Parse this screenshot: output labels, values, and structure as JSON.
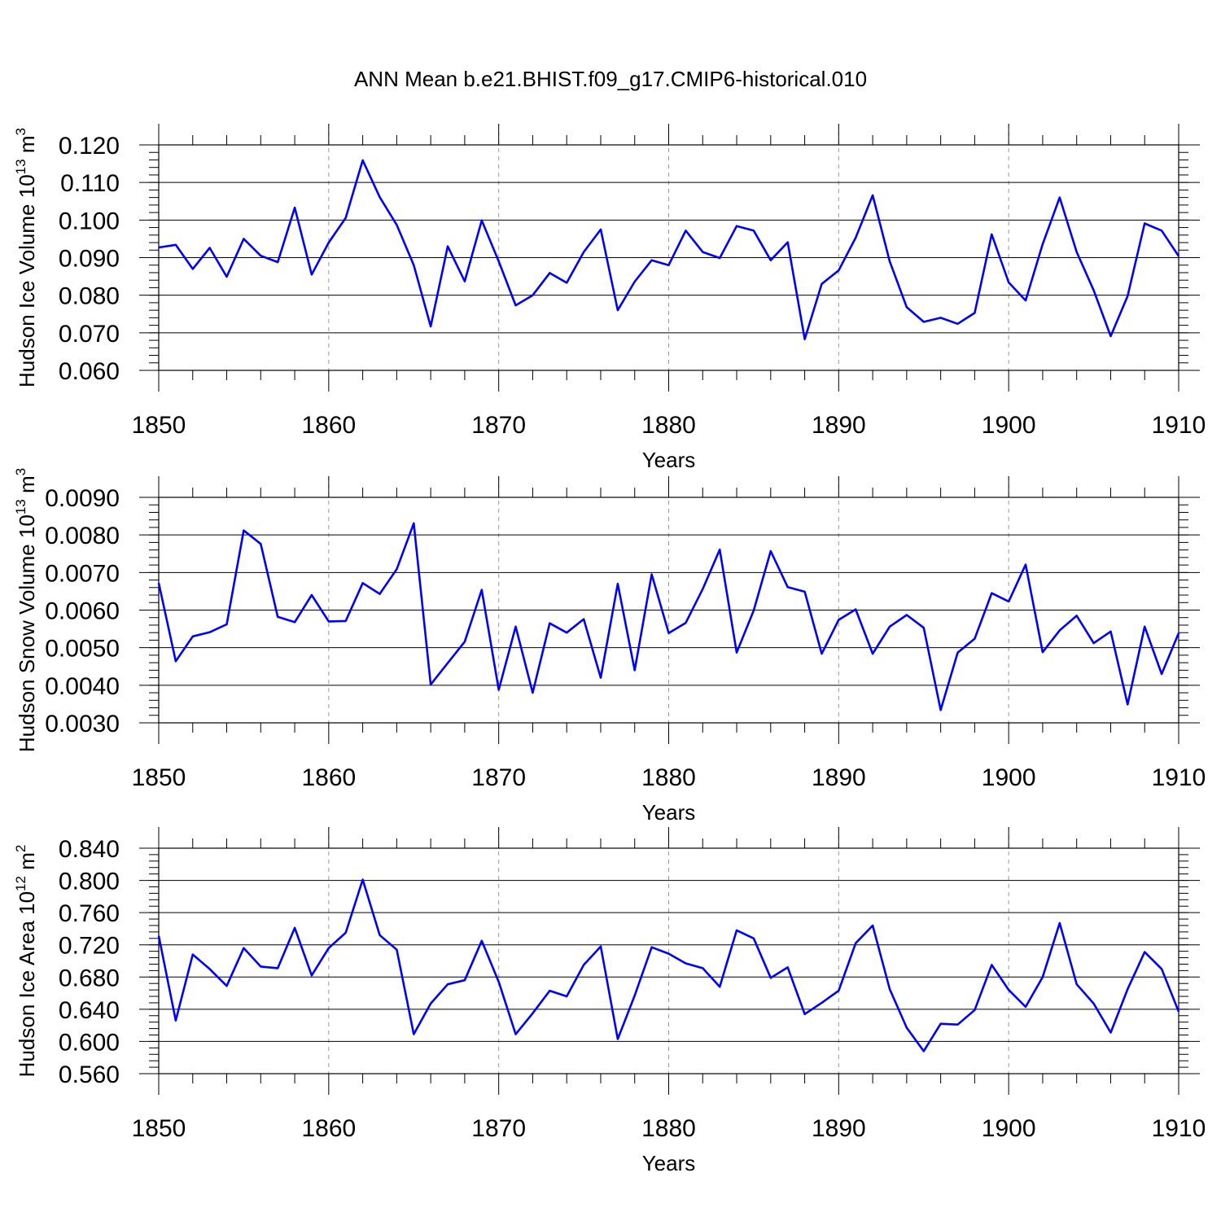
{
  "figure": {
    "title": "ANN Mean b.e21.BHIST.f09_g17.CMIP6-historical.010"
  },
  "chart_data": [
    {
      "type": "line",
      "xlabel": "Years",
      "ylabel": {
        "prefix": "Hudson Ice Volume 10",
        "exp": "13",
        "mid": " m",
        "unit_exp": "3"
      },
      "xlim": [
        1850,
        1910
      ],
      "ylim": [
        0.06,
        0.12
      ],
      "grid": "vertical-dashed",
      "line_color": "#0000ff",
      "x_ticks": [
        "1850",
        "1860",
        "1870",
        "1880",
        "1890",
        "1900",
        "1910"
      ],
      "y_ticks": [
        "0.060",
        "0.070",
        "0.080",
        "0.090",
        "0.100",
        "0.110",
        "0.120"
      ],
      "x": [
        1850,
        1851,
        1852,
        1853,
        1854,
        1855,
        1856,
        1857,
        1858,
        1859,
        1860,
        1861,
        1862,
        1863,
        1864,
        1865,
        1866,
        1867,
        1868,
        1869,
        1870,
        1871,
        1872,
        1873,
        1874,
        1875,
        1876,
        1877,
        1878,
        1879,
        1880,
        1881,
        1882,
        1883,
        1884,
        1885,
        1886,
        1887,
        1888,
        1889,
        1890,
        1891,
        1892,
        1893,
        1894,
        1895,
        1896,
        1897,
        1898,
        1899,
        1900,
        1901,
        1902,
        1903,
        1904,
        1905,
        1906,
        1907,
        1908,
        1909,
        1910
      ],
      "values": [
        0.0927,
        0.0934,
        0.087,
        0.0926,
        0.0849,
        0.095,
        0.0905,
        0.0888,
        0.1033,
        0.0855,
        0.094,
        0.1006,
        0.1159,
        0.1061,
        0.0987,
        0.088,
        0.0717,
        0.093,
        0.0837,
        0.0999,
        0.089,
        0.0773,
        0.08,
        0.0859,
        0.0833,
        0.0915,
        0.0975,
        0.076,
        0.0836,
        0.0893,
        0.088,
        0.0972,
        0.0915,
        0.0899,
        0.0984,
        0.0972,
        0.0893,
        0.0941,
        0.0683,
        0.083,
        0.0866,
        0.0953,
        0.1066,
        0.089,
        0.0768,
        0.0729,
        0.074,
        0.0724,
        0.0753,
        0.0962,
        0.0834,
        0.0786,
        0.0936,
        0.106,
        0.0915,
        0.0813,
        0.0691,
        0.0798,
        0.0991,
        0.0972,
        0.0904
      ]
    },
    {
      "type": "line",
      "xlabel": "Years",
      "ylabel": {
        "prefix": "Hudson Snow Volume 10",
        "exp": "13",
        "mid": " m",
        "unit_exp": "3"
      },
      "xlim": [
        1850,
        1910
      ],
      "ylim": [
        0.003,
        0.009
      ],
      "grid": "vertical-dashed",
      "line_color": "#0000ff",
      "x_ticks": [
        "1850",
        "1860",
        "1870",
        "1880",
        "1890",
        "1900",
        "1910"
      ],
      "y_ticks": [
        "0.0030",
        "0.0040",
        "0.0050",
        "0.0060",
        "0.0070",
        "0.0080",
        "0.0090"
      ],
      "x": [
        1850,
        1851,
        1852,
        1853,
        1854,
        1855,
        1856,
        1857,
        1858,
        1859,
        1860,
        1861,
        1862,
        1863,
        1864,
        1865,
        1866,
        1867,
        1868,
        1869,
        1870,
        1871,
        1872,
        1873,
        1874,
        1875,
        1876,
        1877,
        1878,
        1879,
        1880,
        1881,
        1882,
        1883,
        1884,
        1885,
        1886,
        1887,
        1888,
        1889,
        1890,
        1891,
        1892,
        1893,
        1894,
        1895,
        1896,
        1897,
        1898,
        1899,
        1900,
        1901,
        1902,
        1903,
        1904,
        1905,
        1906,
        1907,
        1908,
        1909,
        1910
      ],
      "values": [
        0.00672,
        0.00464,
        0.0053,
        0.00541,
        0.00562,
        0.00812,
        0.00776,
        0.00582,
        0.00568,
        0.0064,
        0.0057,
        0.00571,
        0.00672,
        0.00643,
        0.00709,
        0.00831,
        0.00402,
        0.00459,
        0.00516,
        0.00654,
        0.00388,
        0.00556,
        0.0038,
        0.00565,
        0.0054,
        0.00576,
        0.0042,
        0.0067,
        0.0044,
        0.00695,
        0.00539,
        0.00566,
        0.00656,
        0.00761,
        0.00487,
        0.00599,
        0.00757,
        0.00661,
        0.00649,
        0.00484,
        0.00574,
        0.00602,
        0.00484,
        0.00556,
        0.00587,
        0.00553,
        0.00334,
        0.00487,
        0.00524,
        0.00645,
        0.00623,
        0.00721,
        0.00488,
        0.00546,
        0.00585,
        0.00512,
        0.00543,
        0.00349,
        0.00556,
        0.0043,
        0.00539
      ]
    },
    {
      "type": "line",
      "xlabel": "Years",
      "ylabel": {
        "prefix": "Hudson Ice Area 10",
        "exp": "12",
        "mid": " m",
        "unit_exp": "2"
      },
      "xlim": [
        1850,
        1910
      ],
      "ylim": [
        0.56,
        0.84
      ],
      "grid": "vertical-dashed",
      "line_color": "#0000ff",
      "x_ticks": [
        "1850",
        "1860",
        "1870",
        "1880",
        "1890",
        "1900",
        "1910"
      ],
      "y_ticks": [
        "0.560",
        "0.600",
        "0.640",
        "0.680",
        "0.720",
        "0.760",
        "0.800",
        "0.840"
      ],
      "x": [
        1850,
        1851,
        1852,
        1853,
        1854,
        1855,
        1856,
        1857,
        1858,
        1859,
        1860,
        1861,
        1862,
        1863,
        1864,
        1865,
        1866,
        1867,
        1868,
        1869,
        1870,
        1871,
        1872,
        1873,
        1874,
        1875,
        1876,
        1877,
        1878,
        1879,
        1880,
        1881,
        1882,
        1883,
        1884,
        1885,
        1886,
        1887,
        1888,
        1889,
        1890,
        1891,
        1892,
        1893,
        1894,
        1895,
        1896,
        1897,
        1898,
        1899,
        1900,
        1901,
        1902,
        1903,
        1904,
        1905,
        1906,
        1907,
        1908,
        1909,
        1910
      ],
      "values": [
        0.731,
        0.626,
        0.708,
        0.69,
        0.669,
        0.716,
        0.693,
        0.691,
        0.741,
        0.682,
        0.716,
        0.735,
        0.801,
        0.732,
        0.714,
        0.609,
        0.647,
        0.671,
        0.676,
        0.725,
        0.674,
        0.609,
        0.635,
        0.663,
        0.656,
        0.695,
        0.718,
        0.603,
        0.657,
        0.717,
        0.709,
        0.697,
        0.691,
        0.668,
        0.738,
        0.728,
        0.679,
        0.692,
        0.634,
        0.648,
        0.663,
        0.722,
        0.744,
        0.665,
        0.617,
        0.588,
        0.622,
        0.621,
        0.639,
        0.695,
        0.664,
        0.643,
        0.68,
        0.747,
        0.671,
        0.647,
        0.611,
        0.665,
        0.711,
        0.69,
        0.637
      ]
    }
  ]
}
